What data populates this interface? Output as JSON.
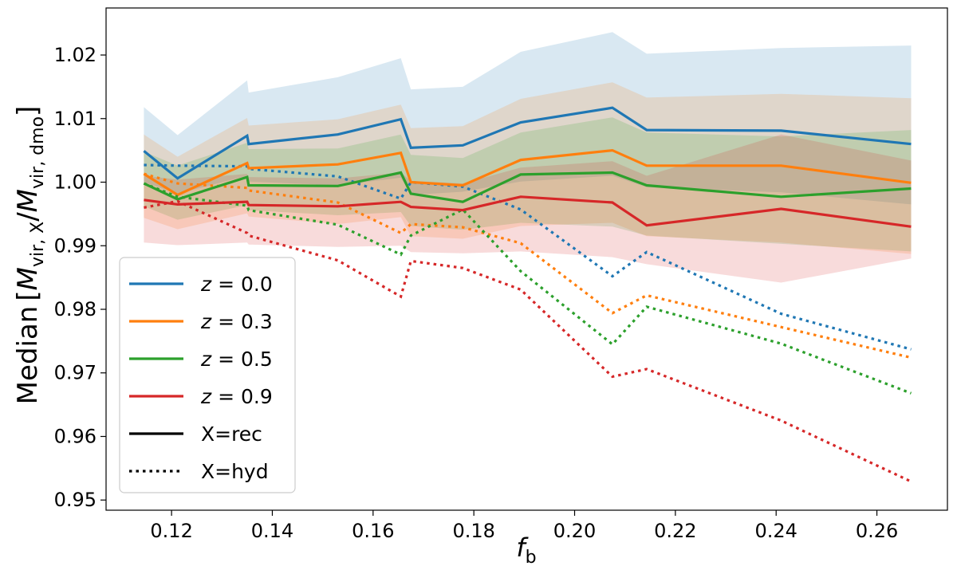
{
  "chart_data": {
    "type": "line",
    "xlabel_main": "f",
    "xlabel_sub": "b",
    "ylabel": {
      "prefix": "Median",
      "m1": "M",
      "s1": "vir, X",
      "slash": "/",
      "m2": "M",
      "s2": "vir, dmo"
    },
    "xlim": [
      0.107,
      0.274
    ],
    "ylim": [
      0.9484,
      1.0274
    ],
    "xticks": [
      0.12,
      0.14,
      0.16,
      0.18,
      0.2,
      0.22,
      0.24,
      0.26
    ],
    "xtick_labels": [
      "0.12",
      "0.14",
      "0.16",
      "0.18",
      "0.20",
      "0.22",
      "0.24",
      "0.26"
    ],
    "yticks": [
      0.95,
      0.96,
      0.97,
      0.98,
      0.99,
      1.0,
      1.01,
      1.02
    ],
    "ytick_labels": [
      "0.95",
      "0.96",
      "0.97",
      "0.98",
      "0.99",
      "1.00",
      "1.01",
      "1.02"
    ],
    "grid": false,
    "legend_position": "bottom-left",
    "x": [
      0.1145,
      0.1212,
      0.135,
      0.1353,
      0.153,
      0.1655,
      0.1675,
      0.1778,
      0.1893,
      0.2075,
      0.2143,
      0.241,
      0.2668
    ],
    "series": [
      {
        "name": "z = 0.0",
        "color": "#1f77b4",
        "rec": [
          1.0049,
          1.0006,
          1.0073,
          1.006,
          1.0075,
          1.0099,
          1.0054,
          1.0058,
          1.0094,
          1.0117,
          1.0082,
          1.0081,
          1.006
        ],
        "hyd": [
          1.0027,
          1.0026,
          1.0025,
          1.0021,
          1.0009,
          0.9974,
          1.0,
          0.9993,
          0.9957,
          0.9852,
          0.989,
          0.9793,
          0.9737
        ],
        "band_high": [
          1.0118,
          1.0074,
          1.016,
          1.0141,
          1.0165,
          1.0195,
          1.0146,
          1.015,
          1.0205,
          1.0236,
          1.0202,
          1.0211,
          1.0215
        ],
        "band_low": [
          1.0,
          0.9982,
          1.001,
          1.0001,
          0.9995,
          1.0007,
          0.998,
          0.9985,
          1.0001,
          1.001,
          0.9992,
          0.9984,
          0.9965
        ]
      },
      {
        "name": "z = 0.3",
        "color": "#ff7f0e",
        "rec": [
          1.0013,
          0.998,
          1.003,
          1.0022,
          1.0028,
          1.0046,
          1.0,
          0.9995,
          1.0035,
          1.005,
          1.0026,
          1.0026,
          0.9999
        ],
        "hyd": [
          1.0013,
          0.9998,
          0.9991,
          0.9987,
          0.9968,
          0.992,
          0.9934,
          0.9929,
          0.9904,
          0.9794,
          0.9822,
          0.9772,
          0.9724
        ],
        "band_high": [
          1.0075,
          1.004,
          1.0101,
          1.0089,
          1.0099,
          1.0122,
          1.0085,
          1.0088,
          1.0131,
          1.0157,
          1.0133,
          1.0139,
          1.0132
        ],
        "band_low": [
          0.9944,
          0.9926,
          0.9951,
          0.9946,
          0.9934,
          0.9945,
          0.9915,
          0.9911,
          0.9931,
          0.9936,
          0.9915,
          0.9905,
          0.9887
        ]
      },
      {
        "name": "z = 0.5",
        "color": "#2ca02c",
        "rec": [
          0.9998,
          0.9973,
          1.0008,
          0.9995,
          0.9994,
          1.0015,
          0.9982,
          0.9969,
          1.0012,
          1.0015,
          0.9995,
          0.9977,
          0.999
        ],
        "hyd": [
          0.9998,
          0.9977,
          0.9963,
          0.9956,
          0.9933,
          0.9886,
          0.9916,
          0.9957,
          0.986,
          0.9745,
          0.9804,
          0.9746,
          0.9668
        ],
        "band_high": [
          1.0048,
          1.0026,
          1.0062,
          1.0052,
          1.0053,
          1.0075,
          1.0043,
          1.0038,
          1.0078,
          1.0102,
          1.0078,
          1.0072,
          1.0082
        ],
        "band_low": [
          0.9962,
          0.9941,
          0.9964,
          0.9956,
          0.9948,
          0.9953,
          0.9931,
          0.9925,
          0.9936,
          0.993,
          0.9916,
          0.9903,
          0.9891
        ]
      },
      {
        "name": "z = 0.9",
        "color": "#d62728",
        "rec": [
          0.9972,
          0.9965,
          0.9969,
          0.9964,
          0.9962,
          0.9969,
          0.9961,
          0.9956,
          0.9977,
          0.9968,
          0.9932,
          0.9958,
          0.993
        ],
        "hyd": [
          0.996,
          0.997,
          0.992,
          0.9916,
          0.9877,
          0.982,
          0.9876,
          0.9865,
          0.9831,
          0.9694,
          0.9706,
          0.9625,
          0.9529
        ],
        "band_high": [
          1.001,
          1.0004,
          1.0013,
          1.0008,
          1.0006,
          1.0015,
          1.0002,
          0.9998,
          1.0023,
          1.0033,
          1.001,
          1.0075,
          1.0034
        ],
        "band_low": [
          0.9905,
          0.9901,
          0.9905,
          0.9902,
          0.9898,
          0.99,
          0.989,
          0.9888,
          0.9891,
          0.9882,
          0.9871,
          0.9842,
          0.988
        ]
      }
    ],
    "legend": [
      {
        "label_prefix": "",
        "label_italic": "z",
        "label_rest": " = 0.0",
        "color": "#1f77b4",
        "style": "solid"
      },
      {
        "label_prefix": "",
        "label_italic": "z",
        "label_rest": " = 0.3",
        "color": "#ff7f0e",
        "style": "solid"
      },
      {
        "label_prefix": "",
        "label_italic": "z",
        "label_rest": " = 0.5",
        "color": "#2ca02c",
        "style": "solid"
      },
      {
        "label_prefix": "",
        "label_italic": "z",
        "label_rest": " = 0.9",
        "color": "#d62728",
        "style": "solid"
      },
      {
        "label_prefix": "X=rec",
        "label_italic": "",
        "label_rest": "",
        "color": "#000000",
        "style": "solid"
      },
      {
        "label_prefix": "X=hyd",
        "label_italic": "",
        "label_rest": "",
        "color": "#000000",
        "style": "dotted"
      }
    ]
  }
}
